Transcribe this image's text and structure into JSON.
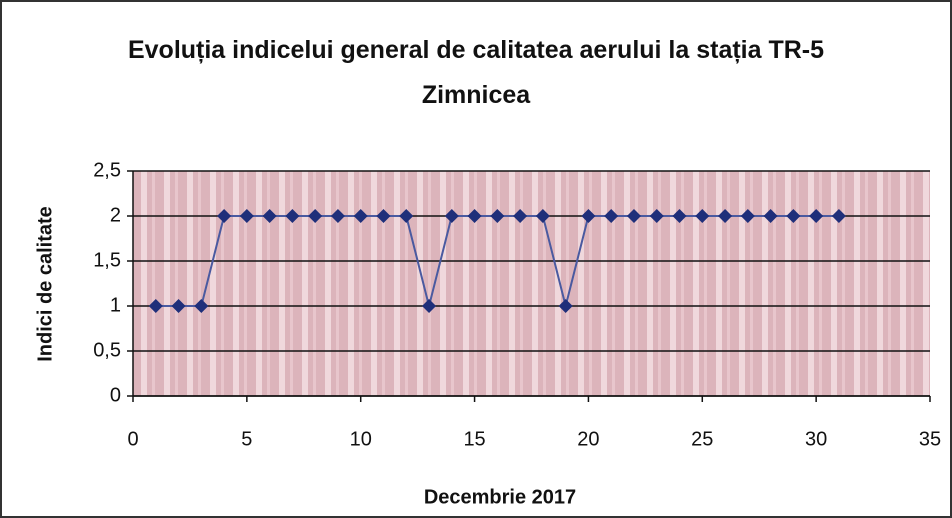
{
  "chart_data": {
    "type": "line",
    "title": "Evoluția indicelui general de calitatea aerului la stația TR-5 Zimnicea",
    "xlabel": "Decembrie 2017",
    "ylabel": "Indici de calitate",
    "x": [
      1,
      2,
      3,
      4,
      5,
      6,
      7,
      8,
      9,
      10,
      11,
      12,
      13,
      14,
      15,
      16,
      17,
      18,
      19,
      20,
      21,
      22,
      23,
      24,
      25,
      26,
      27,
      28,
      29,
      30,
      31
    ],
    "series": [
      {
        "color": "#1f2f7a",
        "values": [
          1,
          1,
          1,
          2,
          2,
          2,
          2,
          2,
          2,
          2,
          2,
          2,
          1,
          2,
          2,
          2,
          2,
          2,
          1,
          2,
          2,
          2,
          2,
          2,
          2,
          2,
          2,
          2,
          2,
          2,
          2
        ]
      }
    ],
    "xlim": [
      0,
      35
    ],
    "xticks": [
      0,
      5,
      10,
      15,
      20,
      25,
      30,
      35
    ],
    "ylim": [
      0,
      2.5
    ],
    "yticks": [
      0,
      {
        "value": 0.5,
        "label": "0,5"
      },
      1,
      {
        "value": 1.5,
        "label": "1,5"
      },
      2,
      {
        "value": 2.5,
        "label": "2,5"
      }
    ],
    "grid": true
  }
}
